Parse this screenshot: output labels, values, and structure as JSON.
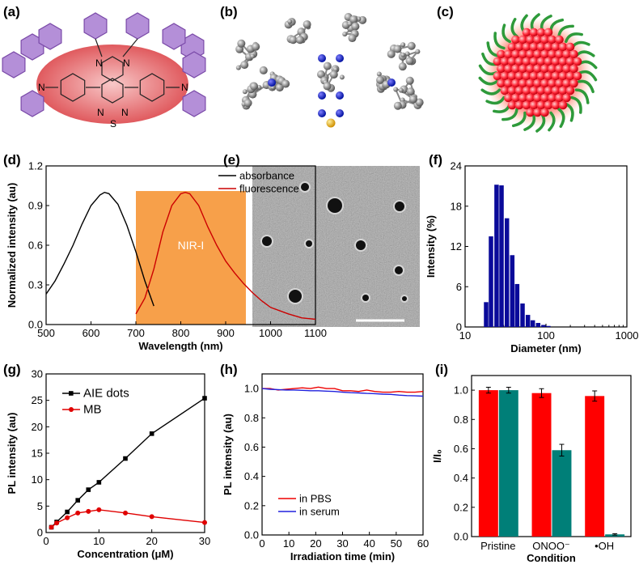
{
  "panel_labels": {
    "a": "(a)",
    "b": "(b)",
    "c": "(c)",
    "d": "(d)",
    "e": "(e)",
    "f": "(f)",
    "g": "(g)",
    "h": "(h)",
    "i": "(i)"
  },
  "structure_a": {
    "atoms": [
      "N",
      "N",
      "N",
      "N",
      "N",
      "S",
      "N"
    ],
    "ring_color": "#b48fd8",
    "core_color": "#e8545a"
  },
  "nanoparticle_c": {
    "core_color": "#ff3040",
    "shell_color": "#2e9a3a"
  },
  "tem_e": {
    "background_color": "#9a9a9a",
    "scale_bar_color": "#ffffff"
  },
  "chart_data": [
    {
      "id": "d",
      "type": "line",
      "xlabel": "Wavelength (nm)",
      "ylabel": "Normalized intensity (au)",
      "xlim": [
        500,
        1100
      ],
      "ylim": [
        0,
        1.2
      ],
      "xticks": [
        "500",
        "600",
        "700",
        "800",
        "900",
        "1000",
        "1100"
      ],
      "yticks": [
        "0.0",
        "0.3",
        "0.6",
        "0.9",
        "1.2"
      ],
      "legend_position": "top-right",
      "annotation": {
        "text": "NIR-I",
        "x_range": [
          700,
          945
        ],
        "y_top": 1.01,
        "color": "#f7a04a"
      },
      "series": [
        {
          "name": "absorbance",
          "color": "#000000",
          "x": [
            500,
            520,
            540,
            560,
            580,
            600,
            620,
            630,
            640,
            660,
            680,
            700,
            720,
            740
          ],
          "y": [
            0.23,
            0.33,
            0.46,
            0.6,
            0.76,
            0.9,
            0.98,
            1.0,
            0.99,
            0.91,
            0.75,
            0.55,
            0.33,
            0.14
          ]
        },
        {
          "name": "fluorescence",
          "color": "#cc0000",
          "x": [
            700,
            720,
            740,
            760,
            780,
            800,
            810,
            820,
            840,
            860,
            880,
            900,
            920,
            940,
            960,
            980,
            1000,
            1040,
            1070,
            1100
          ],
          "y": [
            0.08,
            0.2,
            0.42,
            0.7,
            0.9,
            0.99,
            1.0,
            0.99,
            0.9,
            0.74,
            0.6,
            0.48,
            0.39,
            0.31,
            0.24,
            0.18,
            0.13,
            0.08,
            0.05,
            0.04
          ]
        }
      ]
    },
    {
      "id": "f",
      "type": "bar",
      "xlabel": "Diameter (nm)",
      "ylabel": "Intensity (%)",
      "xlim": [
        10,
        1000
      ],
      "xscale": "log",
      "ylim": [
        0,
        24
      ],
      "xticks": [
        "10",
        "100",
        "1000"
      ],
      "yticks": [
        "0",
        "6",
        "12",
        "18",
        "24"
      ],
      "color": "#0a0a9a",
      "x": [
        18.2,
        20.9,
        24.5,
        28.2,
        32.9,
        38.3,
        44,
        51.3,
        59.8,
        68.7,
        80,
        93,
        107
      ],
      "values": [
        3.7,
        13.5,
        21.2,
        21.1,
        16.2,
        10.7,
        6.4,
        3.5,
        1.8,
        1.0,
        0.6,
        0.3,
        0.15
      ]
    },
    {
      "id": "g",
      "type": "line",
      "xlabel": "Concentration (μM)",
      "ylabel": "PL intensity (au)",
      "xlim": [
        0,
        30
      ],
      "ylim": [
        0,
        30
      ],
      "xticks": [
        "0",
        "10",
        "20",
        "30"
      ],
      "yticks": [
        "0",
        "5",
        "10",
        "15",
        "20",
        "25",
        "30"
      ],
      "legend_position": "top-left",
      "series": [
        {
          "name": "AIE dots",
          "color": "#000000",
          "marker": "square",
          "x": [
            1,
            2,
            4,
            6,
            8,
            10,
            15,
            20,
            30
          ],
          "y": [
            1,
            2,
            3.9,
            6.1,
            8.1,
            9.5,
            14,
            18.7,
            25.4
          ]
        },
        {
          "name": "MB",
          "color": "#e00000",
          "marker": "circle",
          "x": [
            1,
            2,
            4,
            6,
            8,
            10,
            15,
            20,
            30
          ],
          "y": [
            1,
            1.8,
            2.8,
            3.7,
            4,
            4.3,
            3.7,
            3,
            1.9
          ]
        }
      ]
    },
    {
      "id": "h",
      "type": "line",
      "xlabel": "Irradiation time (min)",
      "ylabel": "PL intensity (au)",
      "xlim": [
        0,
        60
      ],
      "ylim": [
        0,
        1.1
      ],
      "xticks": [
        "0",
        "10",
        "20",
        "30",
        "40",
        "50",
        "60"
      ],
      "yticks": [
        "0.0",
        "0.2",
        "0.4",
        "0.6",
        "0.8",
        "1.0"
      ],
      "legend_position": "bottom-left",
      "series": [
        {
          "name": "in PBS",
          "color": "#ee0000",
          "x": [
            0,
            3,
            6,
            9,
            12,
            15,
            18,
            21,
            24,
            27,
            30,
            33,
            36,
            39,
            42,
            45,
            48,
            51,
            54,
            57,
            60
          ],
          "y": [
            1.0,
            1.0,
            0.99,
            0.995,
            1.0,
            1.005,
            1.0,
            1.01,
            1.0,
            1.0,
            0.985,
            0.985,
            0.98,
            0.99,
            0.98,
            0.975,
            0.975,
            0.98,
            0.975,
            0.975,
            0.98
          ]
        },
        {
          "name": "in serum",
          "color": "#2020dd",
          "x": [
            0,
            3,
            6,
            9,
            12,
            15,
            18,
            21,
            24,
            27,
            30,
            33,
            36,
            39,
            42,
            45,
            48,
            51,
            54,
            57,
            60
          ],
          "y": [
            1.0,
            0.995,
            0.993,
            0.99,
            0.99,
            0.988,
            0.985,
            0.985,
            0.982,
            0.98,
            0.975,
            0.972,
            0.97,
            0.967,
            0.965,
            0.962,
            0.96,
            0.955,
            0.952,
            0.95,
            0.948
          ]
        }
      ]
    },
    {
      "id": "i",
      "type": "bar",
      "xlabel": "Condition",
      "ylabel": "I/I₀",
      "ylim": [
        0,
        1.1
      ],
      "yticks": [
        "0.0",
        "0.2",
        "0.4",
        "0.6",
        "0.8",
        "1.0"
      ],
      "categories": [
        "Pristine",
        "ONOO⁻",
        "•OH"
      ],
      "series": [
        {
          "color": "#ff0000",
          "values": [
            1.0,
            0.98,
            0.96
          ],
          "errors": [
            0.02,
            0.03,
            0.035
          ]
        },
        {
          "color": "#007f78",
          "values": [
            1.0,
            0.59,
            0.015
          ],
          "errors": [
            0.02,
            0.04,
            0.005
          ]
        }
      ]
    }
  ]
}
